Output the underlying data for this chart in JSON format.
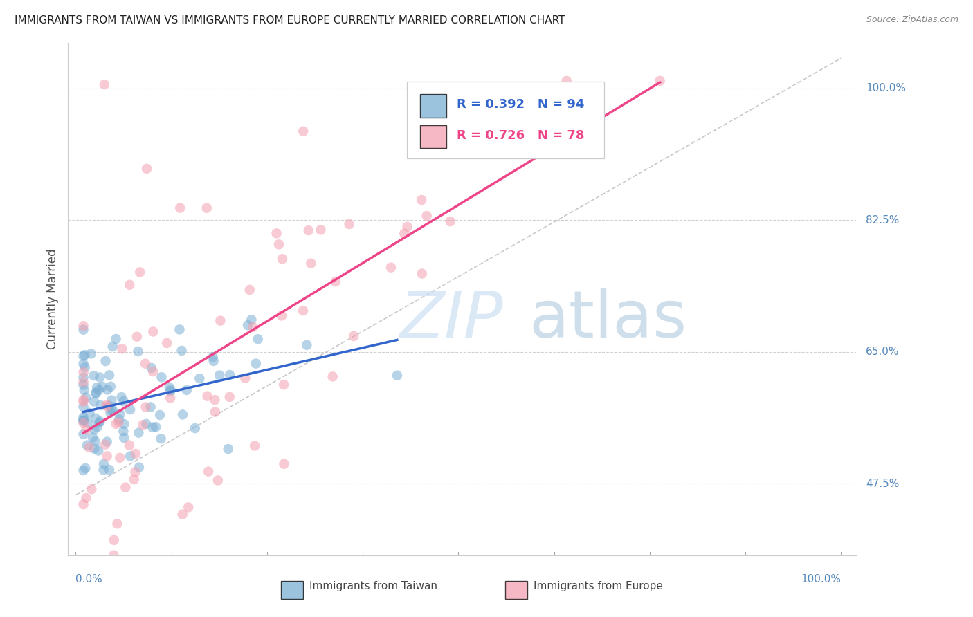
{
  "title": "IMMIGRANTS FROM TAIWAN VS IMMIGRANTS FROM EUROPE CURRENTLY MARRIED CORRELATION CHART",
  "source": "Source: ZipAtlas.com",
  "ylabel": "Currently Married",
  "taiwan_R": 0.392,
  "taiwan_N": 94,
  "europe_R": 0.726,
  "europe_N": 78,
  "color_taiwan": "#7BAFD4",
  "color_europe": "#F4A0B0",
  "trend_taiwan": "#3366CC",
  "trend_europe": "#EE4488",
  "background": "#FFFFFF",
  "grid_color": "#CCCCCC",
  "right_label_color": "#5588BB",
  "ytick_values": [
    0.475,
    0.65,
    0.825,
    1.0
  ],
  "ytick_labels": [
    "47.5%",
    "65.0%",
    "82.5%",
    "100.0%"
  ],
  "xmin": 0.0,
  "xmax": 1.0,
  "ymin": 0.38,
  "ymax": 1.06,
  "taiwan_seed": 77,
  "europe_seed": 55
}
